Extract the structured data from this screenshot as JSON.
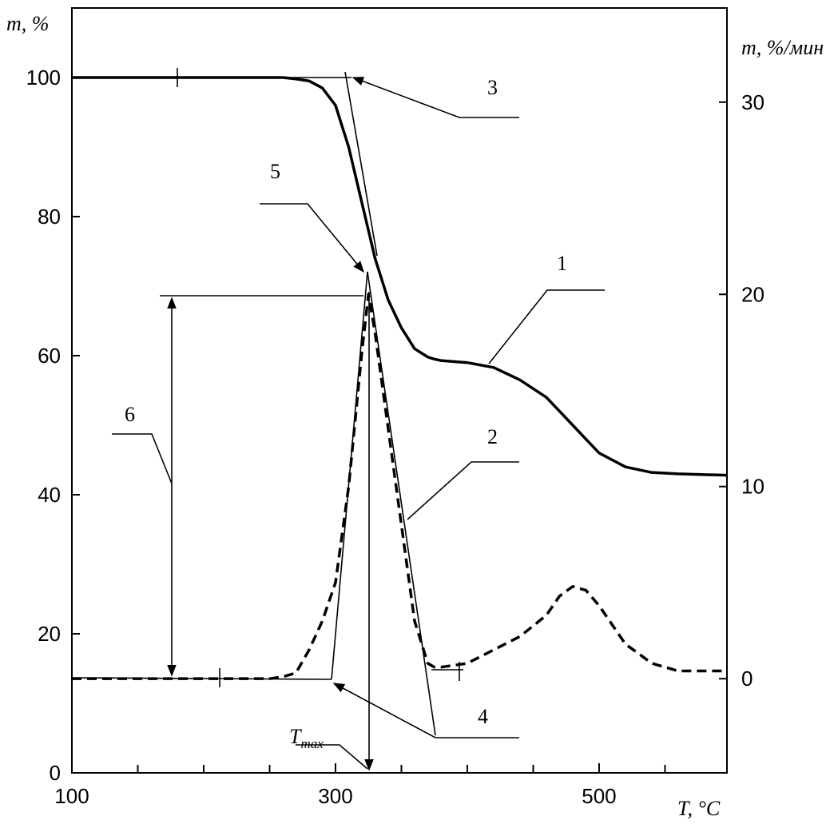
{
  "chart_data": {
    "type": "line",
    "y_label": "m, %",
    "y2_label": "m, %/мин",
    "x_label": "T, °C",
    "xlim": [
      100,
      597
    ],
    "xticks": [
      100,
      300,
      500
    ],
    "xminorticks": [
      150,
      200,
      250,
      350,
      400,
      450,
      550
    ],
    "ylim": [
      0,
      110
    ],
    "yticks": [
      0,
      20,
      40,
      60,
      80,
      100
    ],
    "y2lim": [
      -4.9,
      34.9
    ],
    "y2ticks": [
      0,
      10,
      20,
      30
    ],
    "x": [
      100,
      250,
      260,
      270,
      280,
      290,
      300,
      310,
      320,
      325,
      330,
      340,
      350,
      360,
      370,
      375,
      380,
      400,
      420,
      440,
      460,
      470,
      480,
      490,
      500,
      510,
      520,
      540,
      560,
      597
    ],
    "series": [
      {
        "name": "1",
        "color": "#000000",
        "dashed": false,
        "values": [
          100,
          100,
          100,
          99.8,
          99.5,
          98.5,
          96,
          90,
          82,
          78,
          74,
          68,
          64,
          61,
          59.8,
          59.5,
          59.3,
          59,
          58.3,
          56.5,
          54,
          52,
          50,
          48,
          46,
          45,
          44,
          43.2,
          43,
          42.8
        ]
      },
      {
        "name": "2",
        "color": "#000000",
        "dashed": true,
        "axis": "y2",
        "values": [
          0,
          0,
          0.1,
          0.3,
          1.5,
          3,
          5,
          10,
          17,
          20,
          18,
          13,
          8,
          3,
          0.8,
          0.6,
          0.6,
          0.8,
          1.5,
          2.2,
          3.3,
          4.3,
          4.8,
          4.6,
          3.8,
          2.8,
          1.8,
          0.8,
          0.4,
          0.4
        ]
      }
    ],
    "annotations": [
      "1",
      "2",
      "3",
      "4",
      "5",
      "6"
    ],
    "tmax_label": [
      "T",
      "max"
    ]
  }
}
